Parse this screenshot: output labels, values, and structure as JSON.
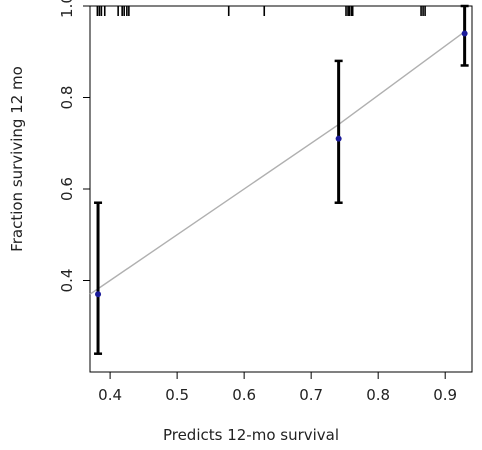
{
  "chart_data": {
    "type": "line",
    "xlabel": "Predicts 12-mo survival",
    "ylabel": "Fraction surviving 12 mo",
    "xlim": [
      0.37,
      0.94
    ],
    "ylim": [
      0.2,
      1.0
    ],
    "x_ticks": [
      0.4,
      0.5,
      0.6,
      0.7,
      0.8,
      0.9
    ],
    "y_ticks": [
      0.4,
      0.6,
      0.8,
      1.0
    ],
    "grid": false,
    "legend": "none",
    "ideal_line": {
      "x": [
        0.37,
        0.385,
        0.74,
        0.93
      ],
      "y": [
        0.37,
        0.385,
        0.74,
        0.945
      ],
      "color": "#b0b0b0"
    },
    "points": [
      {
        "x": 0.382,
        "y": 0.37,
        "lower": 0.24,
        "upper": 0.57
      },
      {
        "x": 0.741,
        "y": 0.71,
        "lower": 0.57,
        "upper": 0.88
      },
      {
        "x": 0.929,
        "y": 0.94,
        "lower": 0.87,
        "upper": 1.0
      }
    ],
    "rug_x": [
      0.381,
      0.384,
      0.387,
      0.392,
      0.412,
      0.418,
      0.421,
      0.425,
      0.428,
      0.577,
      0.63,
      0.752,
      0.755,
      0.757,
      0.76,
      0.762,
      0.864,
      0.867,
      0.87
    ],
    "colors": {
      "points": "#1a1a99",
      "error_bars": "#000000",
      "ideal_line": "#b0b0b0",
      "axis": "#000000"
    }
  }
}
